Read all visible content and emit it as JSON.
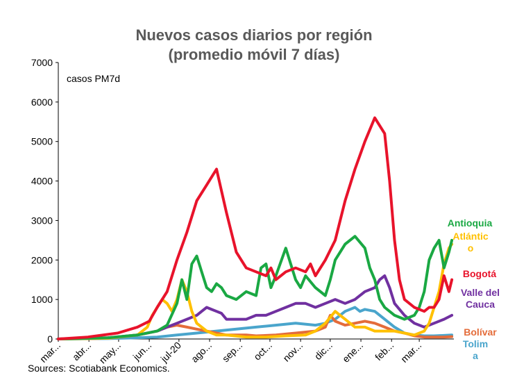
{
  "title": "Nuevos casos diarios por región",
  "subtitle": "(promedio móvil 7 días)",
  "unit_label": "casos PM7d",
  "source": "Sources: Scotiabank Economics.",
  "colors": {
    "Antioquia": "#1aa843",
    "Atlántico": "#ffc000",
    "Bogotá": "#e8132b",
    "Valle del Cauca": "#7030a0",
    "Bolívar": "#e46c3a",
    "Tolima": "#4aa5cc"
  },
  "chart_data": {
    "type": "line",
    "title": "Nuevos casos diarios por región",
    "subtitle": "(promedio móvil 7 días)",
    "ylabel": "casos PM7d",
    "ylim": [
      0,
      7000
    ],
    "yticks": [
      "0",
      "1000",
      "2000",
      "3000",
      "4000",
      "5000",
      "6000",
      "7000"
    ],
    "xlim": [
      0,
      400
    ],
    "x": [
      0,
      31,
      61,
      92,
      122,
      153,
      184,
      214,
      245,
      275,
      306,
      337,
      365
    ],
    "xtick_labels": [
      "mar...",
      "abr...",
      "may...",
      "jun...",
      "jul-20",
      "ago...",
      "sep...",
      "oct...",
      "nov...",
      "dic...",
      "ene...",
      "feb...",
      "mar..."
    ],
    "legend": "end-labels",
    "grid": false,
    "series": [
      {
        "name": "Bogotá",
        "label_lines": [
          "Bogotá"
        ],
        "x": [
          0,
          30,
          60,
          80,
          92,
          100,
          110,
          120,
          130,
          140,
          150,
          160,
          170,
          180,
          190,
          200,
          210,
          215,
          220,
          230,
          240,
          250,
          255,
          260,
          270,
          280,
          290,
          300,
          310,
          320,
          330,
          335,
          340,
          345,
          350,
          360,
          370,
          375,
          380,
          385,
          390,
          395,
          398
        ],
        "y": [
          0,
          50,
          150,
          300,
          450,
          800,
          1200,
          2000,
          2700,
          3500,
          3900,
          4300,
          3200,
          2200,
          1800,
          1700,
          1600,
          1800,
          1500,
          1700,
          1800,
          1700,
          1900,
          1600,
          2000,
          2500,
          3500,
          4300,
          5000,
          5600,
          5200,
          4000,
          2500,
          1500,
          1000,
          800,
          700,
          800,
          800,
          1000,
          1600,
          1200,
          1500
        ]
      },
      {
        "name": "Antioquia",
        "label_lines": [
          "Antioquia"
        ],
        "x": [
          0,
          50,
          80,
          100,
          110,
          120,
          125,
          130,
          135,
          140,
          145,
          150,
          155,
          160,
          165,
          170,
          180,
          190,
          200,
          205,
          210,
          215,
          220,
          230,
          235,
          240,
          245,
          250,
          260,
          270,
          275,
          280,
          290,
          300,
          310,
          315,
          320,
          325,
          330,
          340,
          350,
          360,
          365,
          370,
          375,
          380,
          385,
          390,
          395,
          398
        ],
        "y": [
          0,
          30,
          100,
          200,
          350,
          900,
          1500,
          1000,
          1900,
          2100,
          1700,
          1300,
          1200,
          1400,
          1300,
          1100,
          1000,
          1200,
          1100,
          1800,
          1900,
          1300,
          1600,
          2300,
          1900,
          1500,
          1300,
          1600,
          1300,
          1100,
          1500,
          2000,
          2400,
          2600,
          2300,
          1800,
          1500,
          1000,
          800,
          600,
          500,
          600,
          800,
          1200,
          2000,
          2300,
          2500,
          1800,
          2200,
          2500
        ]
      },
      {
        "name": "Atlántico",
        "label_lines": [
          "Atlántic",
          "o"
        ],
        "x": [
          0,
          50,
          80,
          90,
          95,
          100,
          105,
          110,
          115,
          120,
          125,
          130,
          135,
          140,
          150,
          160,
          170,
          190,
          210,
          230,
          250,
          260,
          270,
          280,
          285,
          290,
          295,
          300,
          310,
          320,
          330,
          340,
          350,
          360,
          370,
          375,
          380,
          385,
          390,
          395,
          398
        ],
        "y": [
          0,
          20,
          100,
          300,
          600,
          800,
          1000,
          900,
          700,
          1000,
          1500,
          1200,
          700,
          400,
          200,
          100,
          100,
          50,
          50,
          80,
          100,
          200,
          400,
          700,
          600,
          500,
          400,
          300,
          300,
          200,
          200,
          200,
          150,
          100,
          200,
          400,
          800,
          1200,
          1900,
          2300,
          2400
        ]
      },
      {
        "name": "Valle del Cauca",
        "label_lines": [
          "Valle del",
          "Cauca"
        ],
        "x": [
          0,
          50,
          80,
          100,
          110,
          120,
          130,
          140,
          145,
          150,
          155,
          160,
          165,
          170,
          180,
          190,
          200,
          210,
          220,
          230,
          240,
          250,
          260,
          270,
          280,
          290,
          300,
          310,
          320,
          325,
          330,
          335,
          340,
          350,
          360,
          370,
          380,
          390,
          398
        ],
        "y": [
          0,
          30,
          100,
          200,
          300,
          400,
          500,
          600,
          700,
          800,
          750,
          700,
          650,
          500,
          500,
          500,
          600,
          600,
          700,
          800,
          900,
          900,
          800,
          900,
          1000,
          900,
          1000,
          1200,
          1300,
          1500,
          1600,
          1300,
          900,
          600,
          400,
          300,
          400,
          500,
          600
        ]
      },
      {
        "name": "Bolívar",
        "label_lines": [
          "Bolívar"
        ],
        "x": [
          0,
          50,
          80,
          100,
          110,
          120,
          130,
          140,
          150,
          160,
          170,
          180,
          190,
          200,
          220,
          240,
          260,
          270,
          275,
          280,
          285,
          290,
          300,
          310,
          320,
          330,
          340,
          350,
          360,
          370,
          380,
          390,
          398
        ],
        "y": [
          0,
          20,
          100,
          200,
          300,
          350,
          300,
          250,
          200,
          150,
          100,
          100,
          100,
          80,
          100,
          150,
          200,
          300,
          600,
          450,
          400,
          350,
          400,
          450,
          400,
          300,
          200,
          150,
          80,
          50,
          50,
          50,
          60
        ]
      },
      {
        "name": "Tolima",
        "label_lines": [
          "Tolim",
          "a"
        ],
        "x": [
          0,
          50,
          80,
          100,
          120,
          140,
          160,
          180,
          200,
          220,
          240,
          260,
          270,
          280,
          290,
          300,
          305,
          310,
          320,
          330,
          340,
          350,
          360,
          370,
          380,
          390,
          398
        ],
        "y": [
          0,
          10,
          30,
          50,
          100,
          150,
          200,
          250,
          300,
          350,
          400,
          350,
          400,
          500,
          700,
          800,
          700,
          750,
          700,
          500,
          300,
          150,
          100,
          80,
          80,
          90,
          100
        ]
      }
    ]
  }
}
